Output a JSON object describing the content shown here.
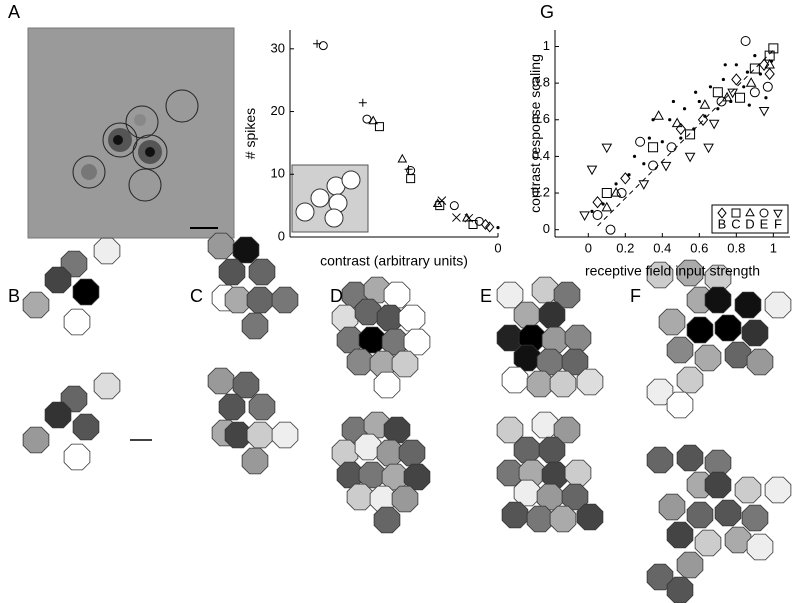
{
  "panel_labels": [
    "A",
    "B",
    "C",
    "D",
    "E",
    "F",
    "G"
  ],
  "chart_data": [
    {
      "type": "scatter",
      "ylabel": "# spikes",
      "xlabel": "contrast (arbitrary units)",
      "xlim": [
        1,
        0
      ],
      "ylim": [
        0,
        33
      ],
      "xticks": [
        0
      ],
      "yticks": [
        0,
        10,
        20,
        30
      ],
      "series": [
        {
          "marker": "plus",
          "x": [
            0.87,
            0.65,
            0.43
          ],
          "values": [
            30.8,
            21.4,
            10.8
          ]
        },
        {
          "marker": "circle",
          "x": [
            0.84,
            0.63,
            0.42,
            0.21,
            0.09
          ],
          "values": [
            30.5,
            18.8,
            10.6,
            5.0,
            2.5
          ]
        },
        {
          "marker": "triangle",
          "x": [
            0.6,
            0.46,
            0.29,
            0.15
          ],
          "values": [
            18.5,
            12.4,
            5.3,
            3.0
          ]
        },
        {
          "marker": "square",
          "x": [
            0.57,
            0.42,
            0.28,
            0.12
          ],
          "values": [
            17.6,
            9.3,
            5.0,
            2.0
          ]
        },
        {
          "marker": "cross",
          "x": [
            0.27,
            0.2,
            0.14
          ],
          "values": [
            5.8,
            3.1,
            3.0
          ]
        },
        {
          "marker": "diamond",
          "x": [
            0.06,
            0.04
          ],
          "values": [
            2.0,
            1.6
          ]
        },
        {
          "marker": "dot",
          "x": [
            0.0
          ],
          "values": [
            1.5
          ]
        }
      ]
    },
    {
      "type": "scatter",
      "ylabel": "contrast response scaling",
      "xlabel": "receptive field input strength",
      "xlim": [
        -0.18,
        1.09
      ],
      "ylim": [
        -0.04,
        1.09
      ],
      "xticks": [
        0,
        0.2,
        0.4,
        0.6,
        0.8,
        1
      ],
      "yticks": [
        0,
        0.2,
        0.4,
        0.6,
        0.8,
        1
      ],
      "legend": "lower right",
      "series": [
        {
          "name": "B",
          "marker": "diamond",
          "x": [
            0.05,
            0.2,
            0.5,
            0.62,
            0.8,
            0.95,
            0.98
          ],
          "values": [
            0.15,
            0.28,
            0.55,
            0.6,
            0.82,
            0.9,
            0.85
          ]
        },
        {
          "name": "C",
          "marker": "square",
          "x": [
            0.1,
            0.35,
            0.55,
            0.7,
            0.82,
            1.0,
            0.98,
            0.9
          ],
          "values": [
            0.2,
            0.45,
            0.52,
            0.75,
            0.72,
            0.99,
            0.95,
            0.88
          ]
        },
        {
          "name": "D",
          "marker": "triangle",
          "x": [
            0.1,
            0.15,
            0.38,
            0.48,
            0.63,
            0.75,
            0.88,
            0.98
          ],
          "values": [
            0.12,
            0.2,
            0.62,
            0.58,
            0.68,
            0.72,
            0.8,
            0.9
          ]
        },
        {
          "name": "E",
          "marker": "circle",
          "x": [
            0.05,
            0.12,
            0.18,
            0.28,
            0.35,
            0.45,
            0.72,
            0.85,
            0.9,
            0.97
          ],
          "values": [
            0.08,
            0.0,
            0.2,
            0.48,
            0.35,
            0.45,
            0.7,
            1.03,
            0.75,
            0.78
          ]
        },
        {
          "name": "F",
          "marker": "dtriangle",
          "x": [
            -0.02,
            0.02,
            0.1,
            0.3,
            0.42,
            0.55,
            0.68,
            0.78,
            0.95,
            0.65
          ],
          "values": [
            0.08,
            0.33,
            0.45,
            0.25,
            0.35,
            0.4,
            0.58,
            0.75,
            0.65,
            0.45
          ]
        },
        {
          "marker": "dot",
          "x": [
            0.02,
            0.08,
            0.15,
            0.22,
            0.25,
            0.3,
            0.33,
            0.4,
            0.44,
            0.5,
            0.52,
            0.57,
            0.6,
            0.63,
            0.66,
            0.7,
            0.73,
            0.77,
            0.8,
            0.84,
            0.87,
            0.9,
            0.93,
            0.96,
            0.99,
            0.46,
            0.58,
            0.74,
            0.86,
            0.35
          ],
          "values": [
            0.1,
            0.14,
            0.25,
            0.3,
            0.4,
            0.36,
            0.5,
            0.48,
            0.6,
            0.5,
            0.66,
            0.55,
            0.7,
            0.62,
            0.78,
            0.66,
            0.82,
            0.7,
            0.9,
            0.78,
            0.68,
            0.95,
            0.85,
            0.72,
            0.92,
            0.7,
            0.75,
            0.9,
            0.86,
            0.6
          ]
        },
        {
          "marker": "dashline",
          "x": [
            0.05,
            1.0
          ],
          "values": [
            0.02,
            0.98
          ]
        }
      ]
    }
  ]
}
